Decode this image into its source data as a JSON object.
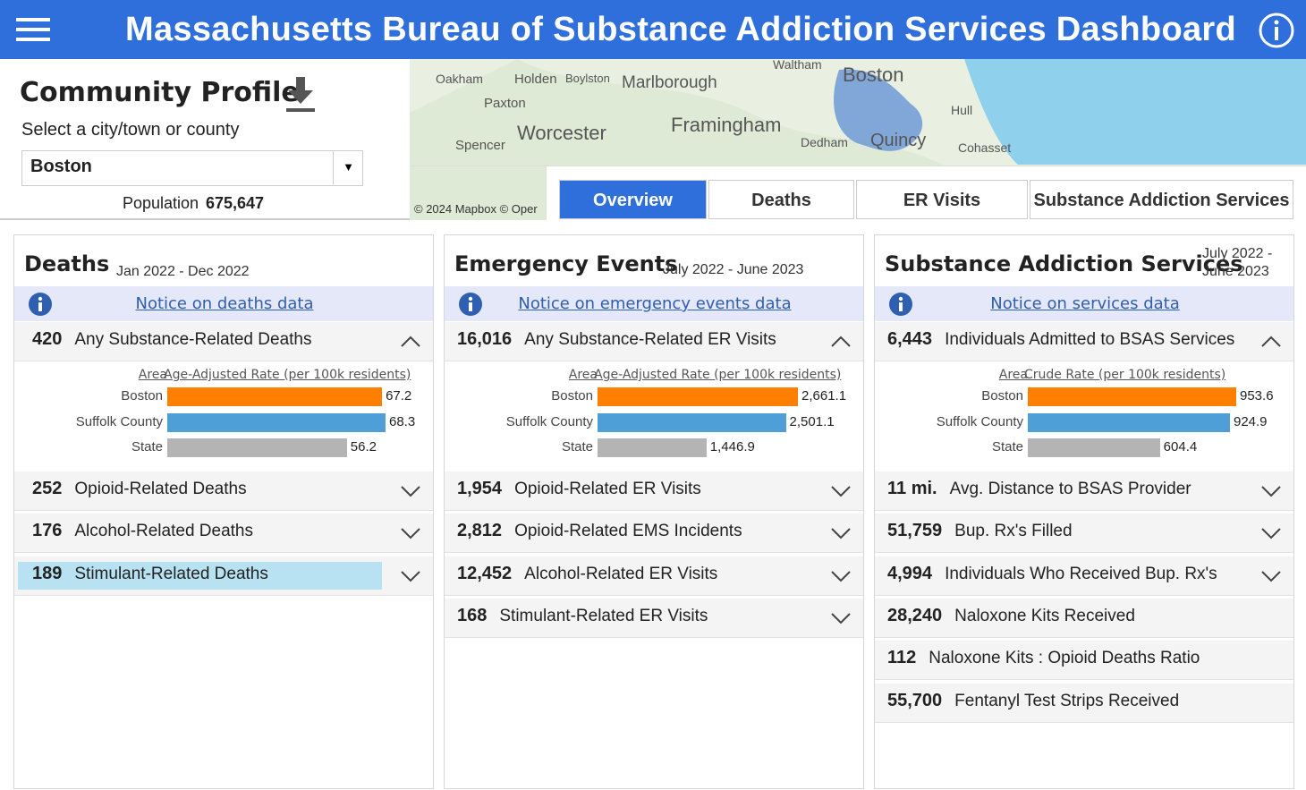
{
  "header": {
    "title": "Massachusetts Bureau of Substance Addiction Services Dashboard"
  },
  "profile": {
    "title": "Community Profile",
    "prompt": "Select a city/town or county",
    "selection": "Boston",
    "population_label": "Population",
    "population": "675,647"
  },
  "map": {
    "places": [
      "Oakham",
      "Holden",
      "Boylston",
      "Marlborough",
      "Paxton",
      "Worcester",
      "Framingham",
      "Spencer",
      "Waltham",
      "Boston",
      "Hull",
      "Dedham",
      "Quincy",
      "Cohasset"
    ],
    "attribution": "© 2024 Mapbox © Oper"
  },
  "tabs": [
    "Overview",
    "Deaths",
    "ER Visits",
    "Substance Addiction Services"
  ],
  "panels": [
    {
      "title": "Deaths",
      "period": "Jan 2022 - Dec 2022",
      "notice": "Notice on deaths data",
      "items": [
        {
          "value": "420",
          "label": "Any Substance-Related Deaths",
          "expandable": true
        },
        {
          "value": "252",
          "label": "Opioid-Related Deaths",
          "expandable": true
        },
        {
          "value": "176",
          "label": "Alcohol-Related Deaths",
          "expandable": true
        },
        {
          "value": "189",
          "label": "Stimulant-Related Deaths",
          "expandable": true,
          "selected": true
        }
      ],
      "chart": {
        "axis_label": "Area",
        "rate_label": "Age-Adjusted Rate (per 100k residents)",
        "categories": [
          "Boston",
          "Suffolk County",
          "State"
        ],
        "values": [
          67.2,
          68.3,
          56.2
        ],
        "colors": [
          "#ff8000",
          "#4e9fd8",
          "#b4b4b4"
        ]
      }
    },
    {
      "title": "Emergency Events",
      "period": "July 2022 - June 2023",
      "notice": "Notice on emergency events data",
      "items": [
        {
          "value": "16,016",
          "label": "Any Substance-Related ER Visits",
          "expandable": true
        },
        {
          "value": "1,954",
          "label": "Opioid-Related ER Visits",
          "expandable": true
        },
        {
          "value": "2,812",
          "label": "Opioid-Related EMS Incidents",
          "expandable": true
        },
        {
          "value": "12,452",
          "label": "Alcohol-Related ER Visits",
          "expandable": true
        },
        {
          "value": "168",
          "label": "Stimulant-Related ER Visits",
          "expandable": true
        }
      ],
      "chart": {
        "axis_label": "Area",
        "rate_label": "Age-Adjusted Rate (per 100k residents)",
        "categories": [
          "Boston",
          "Suffolk County",
          "State"
        ],
        "values": [
          2661.1,
          2501.1,
          1446.9
        ],
        "value_labels": [
          "2,661.1",
          "2,501.1",
          "1,446.9"
        ],
        "colors": [
          "#ff8000",
          "#4e9fd8",
          "#b4b4b4"
        ]
      }
    },
    {
      "title": "Substance Addiction Services",
      "period": "July 2022 - June 2023",
      "notice": "Notice on services data",
      "items": [
        {
          "value": "6,443",
          "label": "Individuals Admitted to BSAS Services",
          "expandable": true
        },
        {
          "value": "11 mi.",
          "label": "Avg. Distance to BSAS Provider",
          "expandable": true
        },
        {
          "value": "51,759",
          "label": "Bup. Rx's Filled",
          "expandable": true
        },
        {
          "value": "4,994",
          "label": "Individuals Who Received Bup. Rx's",
          "expandable": true
        },
        {
          "value": "28,240",
          "label": "Naloxone Kits Received",
          "expandable": false
        },
        {
          "value": "112",
          "label": "Naloxone Kits : Opioid Deaths Ratio",
          "expandable": false
        },
        {
          "value": "55,700",
          "label": "Fentanyl Test Strips Received",
          "expandable": false
        }
      ],
      "chart": {
        "axis_label": "Area",
        "rate_label": "Crude Rate (per 100k residents)",
        "categories": [
          "Boston",
          "Suffolk County",
          "State"
        ],
        "values": [
          953.6,
          924.9,
          604.4
        ],
        "colors": [
          "#ff8000",
          "#4e9fd8",
          "#b4b4b4"
        ]
      }
    }
  ]
}
